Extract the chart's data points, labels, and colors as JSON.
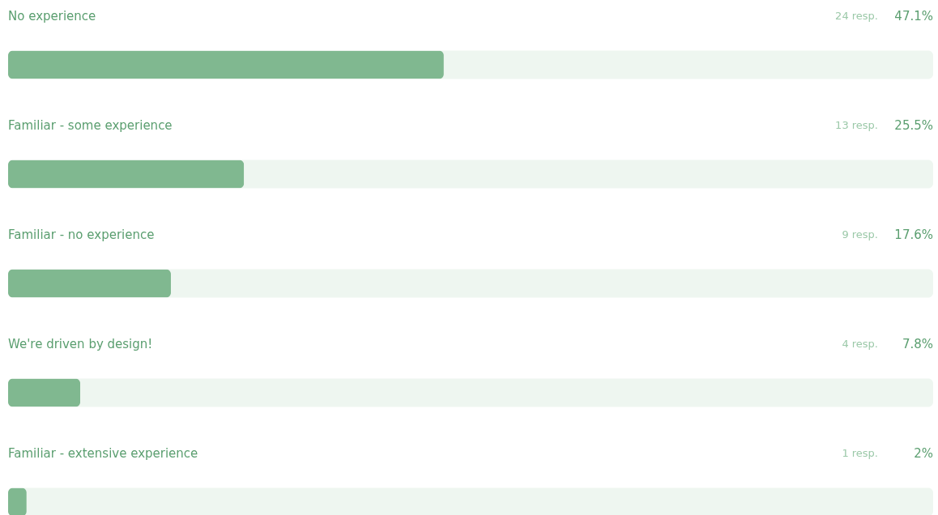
{
  "chart_data": {
    "type": "bar",
    "orientation": "horizontal",
    "categories": [
      "No experience",
      "Familiar - some experience",
      "Familiar - no experience",
      "We're driven by design!",
      "Familiar - extensive experience"
    ],
    "values": [
      47.1,
      25.5,
      17.6,
      7.8,
      2
    ],
    "color": "#80b890",
    "value_labels": [
      "47.1%",
      "25.5%",
      "17.6%",
      "7.8%",
      "2%"
    ],
    "annotations": [
      "24 resp.",
      "13 resp.",
      "9 resp.",
      "4 resp.",
      "1 resp."
    ],
    "xlim": [
      0,
      100
    ],
    "tick_labels": false
  }
}
